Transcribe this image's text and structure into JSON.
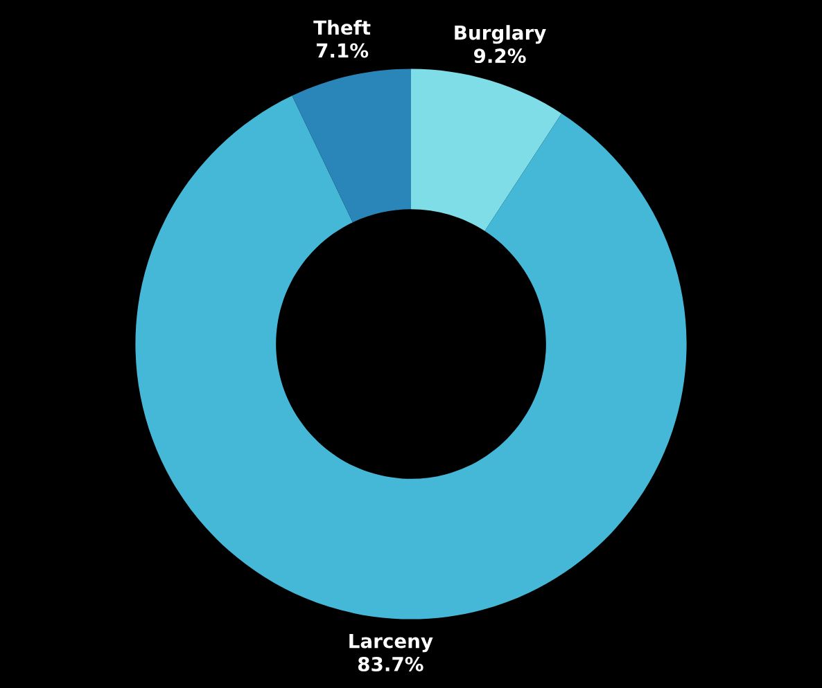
{
  "chart_data": {
    "type": "donut",
    "categories": [
      "Burglary",
      "Larceny",
      "Theft"
    ],
    "values": [
      9.2,
      83.7,
      7.1
    ],
    "colors": [
      "#7fdde8",
      "#45b8d8",
      "#2a85b8"
    ],
    "value_labels": [
      "9.2%",
      "83.7%",
      "7.1%"
    ],
    "legend": false
  }
}
